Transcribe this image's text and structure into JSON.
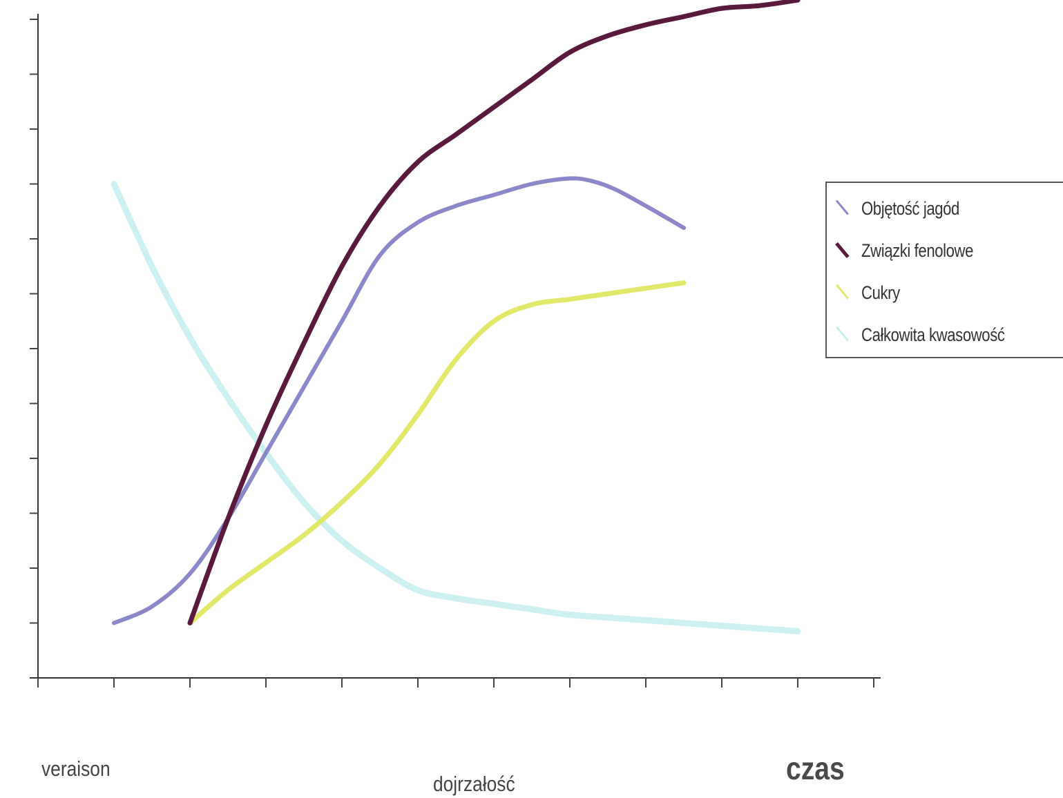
{
  "chart_data": {
    "type": "line",
    "title": "",
    "xlabel": "czas",
    "ylabel": "",
    "x_annotations": [
      {
        "text": "veraison",
        "x": 1
      },
      {
        "text": "dojrzałość",
        "x": 6
      }
    ],
    "xlim": [
      0,
      11
    ],
    "ylim": [
      0,
      12
    ],
    "x_ticks": [
      0,
      1,
      2,
      3,
      4,
      5,
      6,
      7,
      8,
      9,
      10,
      11
    ],
    "y_ticks": [
      0,
      1,
      2,
      3,
      4,
      5,
      6,
      7,
      8,
      9,
      10,
      11,
      12
    ],
    "tick_labels_shown": false,
    "grid": false,
    "legend_position": "right",
    "series": [
      {
        "name": "Objętość jagód",
        "color": "#8a88c8",
        "x": [
          1,
          1.5,
          2,
          2.5,
          3,
          3.5,
          4,
          4.5,
          5,
          5.5,
          6,
          6.5,
          7,
          7.3,
          7.6,
          8,
          8.5
        ],
        "y": [
          1.0,
          1.3,
          1.9,
          2.9,
          4.1,
          5.3,
          6.5,
          7.7,
          8.3,
          8.6,
          8.8,
          9.0,
          9.1,
          9.05,
          8.9,
          8.6,
          8.2
        ]
      },
      {
        "name": "Związki fenolowe",
        "color": "#5a1a3e",
        "x": [
          2,
          2.5,
          3,
          3.5,
          4,
          4.5,
          5,
          5.5,
          6,
          6.5,
          7,
          7.5,
          8,
          8.5,
          9,
          9.5,
          10
        ],
        "y": [
          1.0,
          2.9,
          4.6,
          6.1,
          7.5,
          8.6,
          9.4,
          9.9,
          10.4,
          10.9,
          11.4,
          11.7,
          11.9,
          12.05,
          12.2,
          12.25,
          12.35
        ]
      },
      {
        "name": "Cukry",
        "color": "#e2e86a",
        "x": [
          2,
          2.5,
          3,
          3.5,
          4,
          4.5,
          5,
          5.5,
          6,
          6.5,
          7,
          7.5,
          8,
          8.5
        ],
        "y": [
          1.0,
          1.6,
          2.1,
          2.6,
          3.2,
          3.9,
          4.8,
          5.8,
          6.5,
          6.8,
          6.9,
          7.0,
          7.1,
          7.2
        ]
      },
      {
        "name": "Całkowita kwasowość",
        "color": "#c6f0ee",
        "x": [
          1,
          1.5,
          2,
          2.5,
          3,
          3.5,
          4,
          4.5,
          5,
          5.5,
          6,
          6.5,
          7,
          7.5,
          8,
          8.5,
          9,
          9.5,
          10
        ],
        "y": [
          9.0,
          7.5,
          6.2,
          5.1,
          4.1,
          3.2,
          2.5,
          2.0,
          1.6,
          1.45,
          1.35,
          1.25,
          1.15,
          1.1,
          1.05,
          1.0,
          0.95,
          0.9,
          0.85
        ]
      }
    ]
  },
  "legend": {
    "items": [
      {
        "label": "Objętość jagód",
        "color": "#8a88c8"
      },
      {
        "label": "Związki fenolowe",
        "color": "#5a1a3e"
      },
      {
        "label": "Cukry",
        "color": "#e2e86a"
      },
      {
        "label": "Całkowita kwasowość",
        "color": "#c6f0ee"
      }
    ]
  },
  "annotations": {
    "veraison": "veraison",
    "dojrzalosc": "dojrzałość",
    "czas": "czas"
  }
}
